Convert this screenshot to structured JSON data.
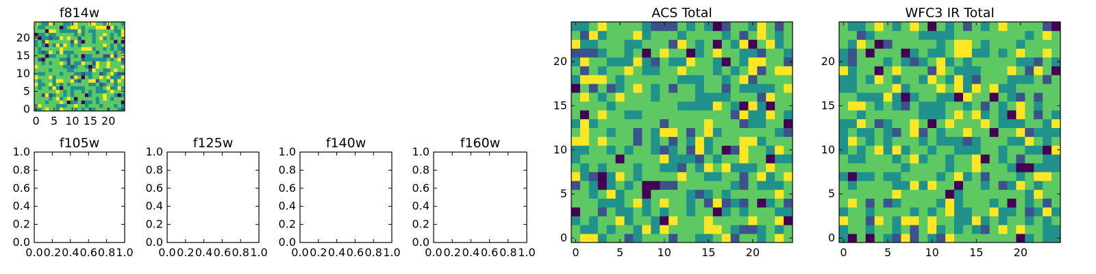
{
  "chart_data": [
    {
      "type": "heatmap",
      "title": "f814w",
      "xlim": [
        -0.5,
        24.5
      ],
      "ylim": [
        -0.5,
        24.5
      ],
      "xticks": [
        0,
        5,
        10,
        15,
        20
      ],
      "yticks": [
        0,
        5,
        10,
        15,
        20
      ],
      "grid_size": 25,
      "colormap": "viridis",
      "origin": "lower",
      "values_note": "pixel values are random noise; exact values not readable"
    },
    {
      "type": "heatmap",
      "title": "f105w",
      "empty": true,
      "xlim": [
        0,
        1
      ],
      "ylim": [
        0,
        1
      ],
      "xticks": [
        "0.0",
        "0.2",
        "0.4",
        "0.6",
        "0.8",
        "1.0"
      ],
      "yticks": [
        "0.0",
        "0.2",
        "0.4",
        "0.6",
        "0.8",
        "1.0"
      ]
    },
    {
      "type": "heatmap",
      "title": "f125w",
      "empty": true,
      "xlim": [
        0,
        1
      ],
      "ylim": [
        0,
        1
      ],
      "xticks": [
        "0.0",
        "0.2",
        "0.4",
        "0.6",
        "0.8",
        "1.0"
      ],
      "yticks": [
        "0.0",
        "0.2",
        "0.4",
        "0.6",
        "0.8",
        "1.0"
      ]
    },
    {
      "type": "heatmap",
      "title": "f140w",
      "empty": true,
      "xlim": [
        0,
        1
      ],
      "ylim": [
        0,
        1
      ],
      "xticks": [
        "0.0",
        "0.2",
        "0.4",
        "0.6",
        "0.8",
        "1.0"
      ],
      "yticks": [
        "0.0",
        "0.2",
        "0.4",
        "0.6",
        "0.8",
        "1.0"
      ]
    },
    {
      "type": "heatmap",
      "title": "f160w",
      "empty": true,
      "xlim": [
        0,
        1
      ],
      "ylim": [
        0,
        1
      ],
      "xticks": [
        "0.0",
        "0.2",
        "0.4",
        "0.6",
        "0.8",
        "1.0"
      ],
      "yticks": [
        "0.0",
        "0.2",
        "0.4",
        "0.6",
        "0.8",
        "1.0"
      ]
    },
    {
      "type": "heatmap",
      "title": "ACS Total",
      "xlim": [
        -0.5,
        24.5
      ],
      "ylim": [
        -0.5,
        24.5
      ],
      "xticks": [
        0,
        5,
        10,
        15,
        20
      ],
      "yticks": [
        0,
        5,
        10,
        15,
        20
      ],
      "grid_size": 25,
      "colormap": "viridis",
      "origin": "lower"
    },
    {
      "type": "heatmap",
      "title": "WFC3 IR Total",
      "xlim": [
        -0.5,
        24.5
      ],
      "ylim": [
        -0.5,
        24.5
      ],
      "xticks": [
        0,
        5,
        10,
        15,
        20
      ],
      "yticks": [
        0,
        5,
        10,
        15,
        20
      ],
      "grid_size": 25,
      "colormap": "viridis",
      "origin": "lower"
    }
  ],
  "colors": {
    "viridis": [
      "#440154",
      "#3b528b",
      "#21918c",
      "#5ec962",
      "#fde725"
    ],
    "frame": "#000000",
    "background": "#ffffff"
  }
}
